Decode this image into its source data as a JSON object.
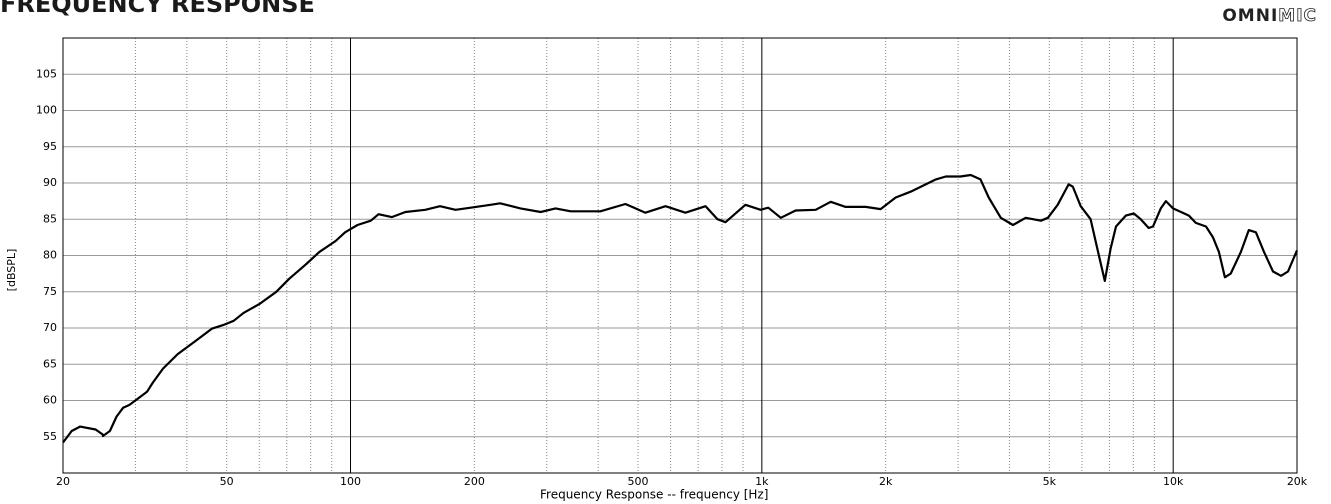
{
  "chart_data": {
    "type": "line",
    "title": "FREQUENCY RESPONSE",
    "logo": {
      "bold": "OMNI",
      "outline": "MIC"
    },
    "xlabel": "Frequency Response -- frequency [Hz]",
    "ylabel": "[dBSPL]",
    "xscale": "log",
    "grid": true,
    "color": "#000000",
    "xlim": [
      20,
      20000
    ],
    "ylim": [
      50,
      110
    ],
    "yticks": [
      55,
      60,
      65,
      70,
      75,
      80,
      85,
      90,
      95,
      100,
      105
    ],
    "xticks": [
      20,
      50,
      100,
      200,
      500,
      {
        "value": 1000,
        "label": "1k"
      },
      {
        "value": 2000,
        "label": "2k"
      },
      {
        "value": 5000,
        "label": "5k"
      },
      {
        "value": 10000,
        "label": "10k"
      },
      {
        "value": 20000,
        "label": "20k"
      }
    ],
    "xminor": [
      30,
      40,
      60,
      70,
      80,
      90,
      300,
      400,
      600,
      700,
      800,
      900,
      3000,
      4000,
      6000,
      7000,
      8000,
      9000
    ],
    "x": [
      20,
      21,
      22,
      24,
      25,
      25,
      26,
      27,
      28,
      29,
      30,
      32,
      33,
      35,
      38,
      42,
      46,
      49,
      52,
      55,
      60,
      66,
      71,
      78,
      84,
      92,
      97,
      104,
      112,
      117,
      126,
      136,
      152,
      165,
      180,
      196,
      219,
      231,
      259,
      290,
      315,
      343,
      405,
      466,
      521,
      583,
      652,
      730,
      780,
      816,
      912,
      993,
      1037,
      1112,
      1208,
      1352,
      1470,
      1598,
      1788,
      1944,
      2115,
      2300,
      2650,
      2800,
      3040,
      3220,
      3400,
      3560,
      3810,
      4080,
      4380,
      4770,
      4960,
      5240,
      5570,
      5700,
      5960,
      6300,
      6600,
      6820,
      7050,
      7260,
      7670,
      8020,
      8340,
      8720,
      8930,
      9330,
      9600,
      9990,
      10450,
      10920,
      11350,
      12020,
      12500,
      12920,
      13360,
      13800,
      14610,
      15270,
      15890,
      16630,
      17490,
      18290,
      19020,
      20000
    ],
    "values": [
      54.2,
      55.8,
      56.4,
      56.0,
      55.3,
      55.1,
      55.8,
      57.8,
      59.0,
      59.4,
      60.0,
      61.2,
      62.4,
      64.4,
      66.4,
      68.2,
      69.9,
      70.4,
      71.0,
      72.1,
      73.3,
      75.0,
      76.8,
      78.8,
      80.5,
      82.0,
      83.2,
      84.2,
      84.8,
      85.7,
      85.3,
      86.0,
      86.3,
      86.8,
      86.3,
      86.6,
      87.0,
      87.2,
      86.5,
      86.0,
      86.5,
      86.1,
      86.1,
      87.1,
      85.9,
      86.8,
      85.9,
      86.8,
      85.0,
      84.6,
      87.0,
      86.3,
      86.6,
      85.2,
      86.2,
      86.3,
      87.4,
      86.7,
      86.7,
      86.4,
      88.0,
      88.8,
      90.5,
      90.9,
      90.9,
      91.1,
      90.5,
      88.0,
      85.2,
      84.2,
      85.2,
      84.8,
      85.2,
      87.0,
      89.8,
      89.5,
      86.8,
      85.0,
      80.0,
      76.5,
      81.0,
      84.0,
      85.5,
      85.8,
      85.0,
      83.8,
      84.0,
      86.5,
      87.5,
      86.5,
      86.0,
      85.5,
      84.5,
      84.0,
      82.5,
      80.5,
      77.0,
      77.5,
      80.5,
      83.5,
      83.2,
      80.5,
      77.8,
      77.2,
      77.8,
      80.7
    ]
  }
}
